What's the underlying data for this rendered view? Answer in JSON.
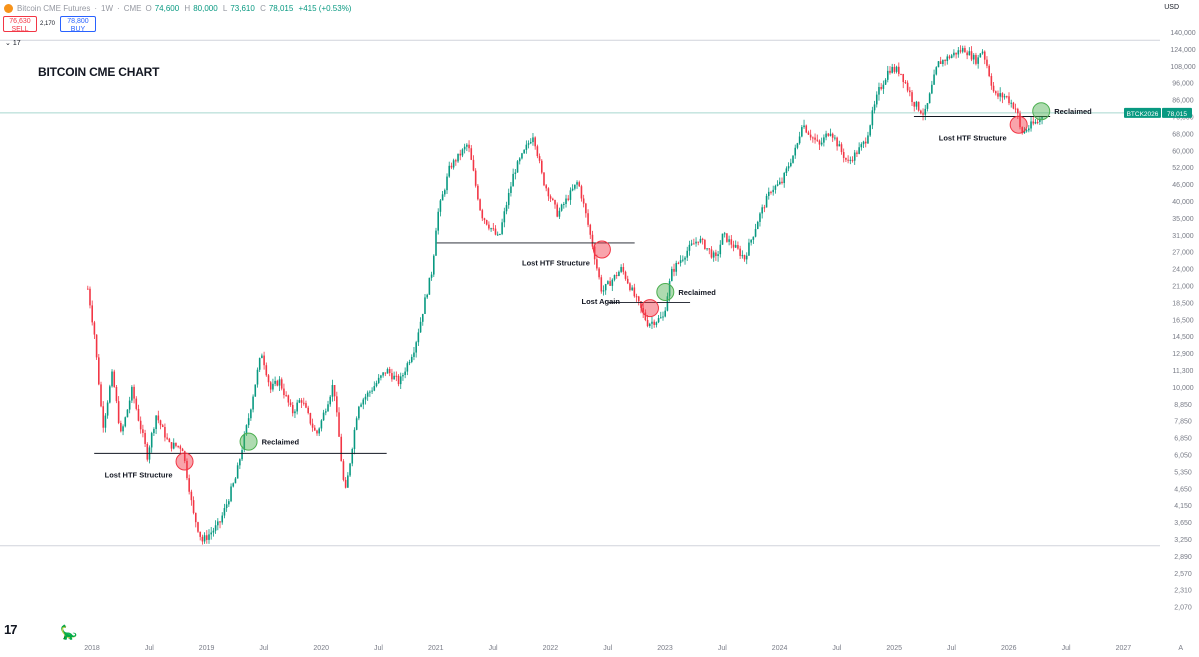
{
  "header": {
    "symbol_name": "Bitcoin CME Futures",
    "interval": "1W",
    "exchange": "CME",
    "ohlc": {
      "open_label": "O",
      "open": "74,600",
      "high_label": "H",
      "high": "80,000",
      "low_label": "L",
      "low": "73,610",
      "close_label": "C",
      "close": "78,015",
      "change": "+415 (+0.53%)"
    },
    "sell_price": "76,630",
    "sell_label": "SELL",
    "spread": "2,170",
    "buy_price": "78,800",
    "buy_label": "BUY",
    "indicator_count": "17",
    "currency": "USD"
  },
  "chart_data": {
    "type": "candlestick",
    "title": "BITCOIN CME CHART",
    "scale": "log",
    "y_ticks": [
      "140,000",
      "124,000",
      "108,000",
      "96,000",
      "86,000",
      "76,000",
      "68,000",
      "60,000",
      "52,000",
      "46,000",
      "40,000",
      "35,000",
      "31,000",
      "27,000",
      "24,000",
      "21,000",
      "18,500",
      "16,500",
      "14,500",
      "12,900",
      "11,300",
      "10,000",
      "8,850",
      "7,850",
      "6,850",
      "6,050",
      "5,350",
      "4,650",
      "4,150",
      "3,650",
      "3,250",
      "2,890",
      "2,570",
      "2,310",
      "2,070"
    ],
    "y_ticks_label_rows": [
      0,
      1,
      2,
      3,
      4,
      5,
      6,
      7,
      8,
      9,
      10,
      11,
      12,
      13,
      14,
      15,
      16,
      17,
      18,
      19,
      20,
      21,
      22,
      23,
      24,
      25,
      26,
      27,
      28,
      29,
      30,
      31,
      32,
      33,
      34
    ],
    "x_ticks": [
      "2018",
      "Jul",
      "2019",
      "Jul",
      "2020",
      "Jul",
      "2021",
      "Jul",
      "2022",
      "Jul",
      "2023",
      "Jul",
      "2024",
      "Jul",
      "2025",
      "Jul",
      "2026",
      "Jul",
      "2027",
      "A"
    ],
    "x_ticks_dates": [
      "2018-01",
      "2018-07",
      "2019-01",
      "2019-07",
      "2020-01",
      "2020-07",
      "2021-01",
      "2021-07",
      "2022-01",
      "2022-07",
      "2023-01",
      "2023-07",
      "2024-01",
      "2024-07",
      "2025-01",
      "2025-07",
      "2026-01",
      "2026-07",
      "2027-01",
      "2027-07"
    ],
    "price_path": [
      [
        "2017-12-18",
        20500
      ],
      [
        "2018-01-08",
        15000
      ],
      [
        "2018-02-05",
        7500
      ],
      [
        "2018-03-05",
        11000
      ],
      [
        "2018-04-02",
        7000
      ],
      [
        "2018-05-07",
        9800
      ],
      [
        "2018-06-25",
        6000
      ],
      [
        "2018-07-23",
        8200
      ],
      [
        "2018-09-03",
        6500
      ],
      [
        "2018-10-15",
        6400
      ],
      [
        "2018-11-19",
        3900
      ],
      [
        "2018-12-17",
        3200
      ],
      [
        "2019-02-11",
        3600
      ],
      [
        "2019-04-01",
        5000
      ],
      [
        "2019-05-13",
        8000
      ],
      [
        "2019-06-24",
        13000
      ],
      [
        "2019-07-22",
        9800
      ],
      [
        "2019-08-19",
        10500
      ],
      [
        "2019-09-30",
        8300
      ],
      [
        "2019-10-28",
        9200
      ],
      [
        "2019-12-16",
        7000
      ],
      [
        "2020-02-10",
        10300
      ],
      [
        "2020-03-16",
        4400
      ],
      [
        "2020-04-27",
        8800
      ],
      [
        "2020-06-01",
        9600
      ],
      [
        "2020-07-27",
        11300
      ],
      [
        "2020-09-07",
        10300
      ],
      [
        "2020-10-26",
        13600
      ],
      [
        "2020-12-21",
        24000
      ],
      [
        "2021-01-04",
        35000
      ],
      [
        "2021-02-15",
        52000
      ],
      [
        "2021-04-12",
        63000
      ],
      [
        "2021-05-24",
        36000
      ],
      [
        "2021-07-19",
        30000
      ],
      [
        "2021-09-06",
        50000
      ],
      [
        "2021-10-18",
        62000
      ],
      [
        "2021-11-08",
        68000
      ],
      [
        "2021-12-06",
        48000
      ],
      [
        "2022-01-24",
        36000
      ],
      [
        "2022-03-28",
        47000
      ],
      [
        "2022-05-09",
        30000
      ],
      [
        "2022-06-13",
        20000
      ],
      [
        "2022-08-15",
        24000
      ],
      [
        "2022-09-26",
        19300
      ],
      [
        "2022-11-07",
        16000
      ],
      [
        "2022-12-26",
        16700
      ],
      [
        "2023-01-23",
        23500
      ],
      [
        "2023-03-20",
        28000
      ],
      [
        "2023-04-17",
        30000
      ],
      [
        "2023-06-12",
        25500
      ],
      [
        "2023-07-03",
        31000
      ],
      [
        "2023-09-11",
        25800
      ],
      [
        "2023-10-23",
        34500
      ],
      [
        "2023-12-04",
        44000
      ],
      [
        "2024-01-08",
        46500
      ],
      [
        "2024-02-26",
        62000
      ],
      [
        "2024-03-11",
        73000
      ],
      [
        "2024-05-06",
        62000
      ],
      [
        "2024-06-10",
        70000
      ],
      [
        "2024-08-05",
        54000
      ],
      [
        "2024-09-30",
        64000
      ],
      [
        "2024-11-11",
        90000
      ],
      [
        "2024-12-16",
        106000
      ],
      [
        "2025-01-20",
        104000
      ],
      [
        "2025-03-03",
        84000
      ],
      [
        "2025-04-07",
        77000
      ],
      [
        "2025-05-19",
        110000
      ],
      [
        "2025-07-14",
        120000
      ],
      [
        "2025-08-11",
        124000
      ],
      [
        "2025-09-22",
        112000
      ],
      [
        "2025-10-06",
        125000
      ],
      [
        "2025-11-17",
        88000
      ],
      [
        "2025-12-22",
        88000
      ],
      [
        "2026-01-26",
        80000
      ],
      [
        "2026-02-09",
        68000
      ],
      [
        "2026-03-16",
        72000
      ],
      [
        "2026-04-06",
        74000
      ],
      [
        "2026-04-20",
        78015
      ]
    ],
    "levels": [
      {
        "price": 6100,
        "from": "2018-01-08",
        "to": "2020-07-27"
      },
      {
        "price": 29000,
        "from": "2021-01-04",
        "to": "2022-09-26"
      },
      {
        "price": 18500,
        "from": "2022-07-04",
        "to": "2023-03-20"
      },
      {
        "price": 76000,
        "from": "2025-03-03",
        "to": "2026-05-11"
      }
    ],
    "guides": [
      {
        "price": 132000,
        "style": "top-rule"
      },
      {
        "price": 78015,
        "style": "current-price"
      },
      {
        "price": 3100,
        "style": "bottom-rule"
      }
    ],
    "annotations": [
      {
        "text": "Lost HTF Structure",
        "date": "2018-10-22",
        "price": 5750,
        "marker": "red",
        "label_side": "left-below"
      },
      {
        "text": "Reclaimed",
        "date": "2019-05-13",
        "price": 6650,
        "marker": "green",
        "label_side": "right"
      },
      {
        "text": "Lost HTF Structure",
        "date": "2022-06-13",
        "price": 27500,
        "marker": "red",
        "label_side": "left-below"
      },
      {
        "text": "Lost Again",
        "date": "2022-11-14",
        "price": 17800,
        "marker": "red",
        "label_side": "left"
      },
      {
        "text": "Reclaimed",
        "date": "2023-01-02",
        "price": 20000,
        "marker": "green",
        "label_side": "right"
      },
      {
        "text": "Lost HTF Structure",
        "date": "2026-02-02",
        "price": 72000,
        "marker": "red",
        "label_side": "left-below"
      },
      {
        "text": "Reclaimed",
        "date": "2026-04-13",
        "price": 79000,
        "marker": "green",
        "label_side": "right"
      }
    ],
    "price_tag": {
      "symbol": "BTCK2026",
      "value": "78,015",
      "color": "#089981"
    },
    "colors": {
      "up": "#089981",
      "down": "#f23645",
      "red_marker": "#f23645",
      "green_marker": "#4caf50"
    }
  },
  "footer": {
    "logo": "17",
    "logo_glyph": "🦕"
  }
}
